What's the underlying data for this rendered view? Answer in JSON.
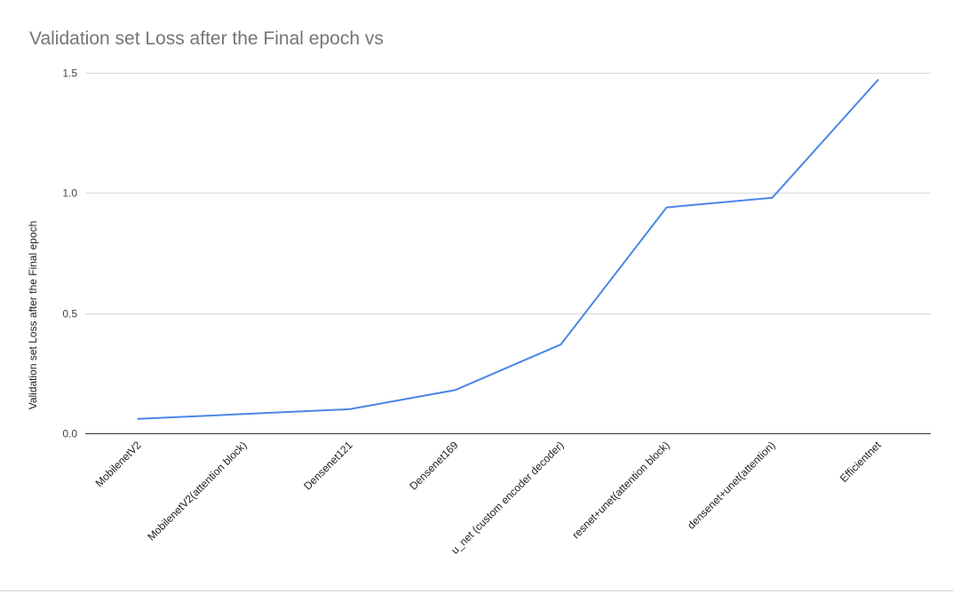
{
  "chart_data": {
    "type": "line",
    "title": "Validation set Loss after the Final epoch vs",
    "xlabel": "",
    "ylabel": "Validation set Loss after the Final epoch",
    "categories": [
      "MobilenetV2",
      "MobilenetV2(attention block)",
      "Densenet121",
      "Densenet169",
      "u_net (custom encoder decoder)",
      "resnet+unet(attention block)",
      "densenet+unet(attention)",
      "Efficientnet"
    ],
    "series": [
      {
        "values": [
          0.06,
          0.08,
          0.1,
          0.18,
          0.37,
          0.94,
          0.98,
          1.47
        ],
        "color": "#4a86e8"
      }
    ],
    "ylim": [
      0,
      1.5
    ],
    "yticks": [
      "0.0",
      "0.5",
      "1.0",
      "1.5"
    ],
    "yticks_values": [
      0,
      0.5,
      1.0,
      1.5
    ],
    "grid": true,
    "legend": "none"
  }
}
